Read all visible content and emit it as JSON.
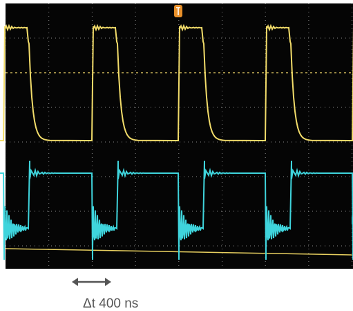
{
  "annotation": {
    "label": "Δt 400 ns"
  }
}
